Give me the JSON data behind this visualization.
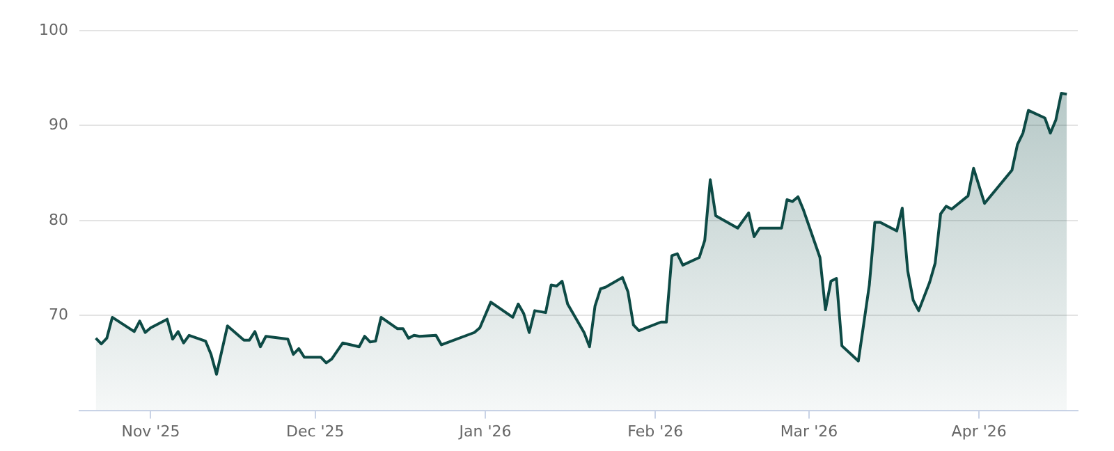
{
  "chart_data": {
    "type": "area",
    "x": [
      "2025-10-22",
      "2025-10-23",
      "2025-10-24",
      "2025-10-25",
      "2025-10-29",
      "2025-10-30",
      "2025-10-31",
      "2025-11-01",
      "2025-11-04",
      "2025-11-05",
      "2025-11-06",
      "2025-11-07",
      "2025-11-08",
      "2025-11-11",
      "2025-11-12",
      "2025-11-13",
      "2025-11-15",
      "2025-11-18",
      "2025-11-19",
      "2025-11-20",
      "2025-11-21",
      "2025-11-22",
      "2025-11-26",
      "2025-11-27",
      "2025-11-28",
      "2025-11-29",
      "2025-12-02",
      "2025-12-03",
      "2025-12-04",
      "2025-12-06",
      "2025-12-09",
      "2025-12-10",
      "2025-12-11",
      "2025-12-12",
      "2025-12-13",
      "2025-12-16",
      "2025-12-17",
      "2025-12-18",
      "2025-12-19",
      "2025-12-20",
      "2025-12-23",
      "2025-12-24",
      "2025-12-30",
      "2025-12-31",
      "2026-01-02",
      "2026-01-06",
      "2026-01-07",
      "2026-01-08",
      "2026-01-09",
      "2026-01-10",
      "2026-01-12",
      "2026-01-13",
      "2026-01-14",
      "2026-01-15",
      "2026-01-16",
      "2026-01-19",
      "2026-01-20",
      "2026-01-21",
      "2026-01-22",
      "2026-01-23",
      "2026-01-26",
      "2026-01-27",
      "2026-01-28",
      "2026-01-29",
      "2026-02-02",
      "2026-02-03",
      "2026-02-04",
      "2026-02-05",
      "2026-02-06",
      "2026-02-09",
      "2026-02-10",
      "2026-02-11",
      "2026-02-12",
      "2026-02-16",
      "2026-02-18",
      "2026-02-19",
      "2026-02-20",
      "2026-02-24",
      "2026-02-25",
      "2026-02-26",
      "2026-02-27",
      "2026-02-28",
      "2026-03-03",
      "2026-03-04",
      "2026-03-05",
      "2026-03-06",
      "2026-03-07",
      "2026-03-10",
      "2026-03-11",
      "2026-03-12",
      "2026-03-13",
      "2026-03-14",
      "2026-03-17",
      "2026-03-18",
      "2026-03-19",
      "2026-03-20",
      "2026-03-21",
      "2026-03-23",
      "2026-03-24",
      "2026-03-25",
      "2026-03-26",
      "2026-03-27",
      "2026-03-30",
      "2026-03-31",
      "2026-04-02",
      "2026-04-07",
      "2026-04-08",
      "2026-04-09",
      "2026-04-10",
      "2026-04-13",
      "2026-04-14",
      "2026-04-15",
      "2026-04-16",
      "2026-04-17"
    ],
    "series": [
      {
        "color": "#0d4a45",
        "values": [
          67.6,
          67.0,
          67.6,
          69.8,
          68.3,
          69.4,
          68.2,
          68.7,
          69.6,
          67.5,
          68.3,
          67.1,
          67.9,
          67.3,
          65.9,
          63.8,
          68.9,
          67.4,
          67.4,
          68.3,
          66.7,
          67.8,
          67.5,
          65.9,
          66.5,
          65.6,
          65.6,
          65.0,
          65.4,
          67.1,
          66.7,
          67.8,
          67.2,
          67.3,
          69.8,
          68.6,
          68.6,
          67.6,
          67.9,
          67.8,
          67.9,
          66.9,
          68.2,
          68.7,
          71.4,
          69.8,
          71.2,
          70.2,
          68.2,
          70.5,
          70.3,
          73.2,
          73.1,
          73.6,
          71.2,
          68.2,
          66.7,
          71.0,
          72.8,
          73.0,
          74.0,
          72.5,
          69.0,
          68.4,
          69.3,
          69.3,
          76.3,
          76.5,
          75.3,
          76.1,
          77.9,
          84.3,
          80.5,
          79.2,
          80.8,
          78.3,
          79.2,
          79.2,
          82.2,
          82.0,
          82.5,
          81.1,
          76.1,
          70.6,
          73.6,
          73.9,
          66.8,
          65.2,
          69.2,
          73.2,
          79.8,
          79.8,
          78.9,
          81.3,
          74.7,
          71.6,
          70.5,
          73.5,
          75.5,
          80.7,
          81.5,
          81.2,
          82.6,
          85.5,
          81.8,
          85.3,
          88.0,
          89.2,
          91.6,
          90.8,
          89.2,
          90.6,
          93.4,
          93.3
        ]
      }
    ],
    "xlim": [
      "2025-10-19",
      "2026-04-19"
    ],
    "xticks": [
      {
        "value": "2025-11-01",
        "label": "Nov '25"
      },
      {
        "value": "2025-12-01",
        "label": "Dec '25"
      },
      {
        "value": "2026-01-01",
        "label": "Jan '26"
      },
      {
        "value": "2026-02-01",
        "label": "Feb '26"
      },
      {
        "value": "2026-03-01",
        "label": "Mar '26"
      },
      {
        "value": "2026-04-01",
        "label": "Apr '26"
      }
    ],
    "ylim": [
      60,
      100
    ],
    "yticks": [
      {
        "value": 60,
        "label": null
      },
      70,
      80,
      90,
      100
    ],
    "grid": "y",
    "marker": "none",
    "line_style": "solid"
  }
}
